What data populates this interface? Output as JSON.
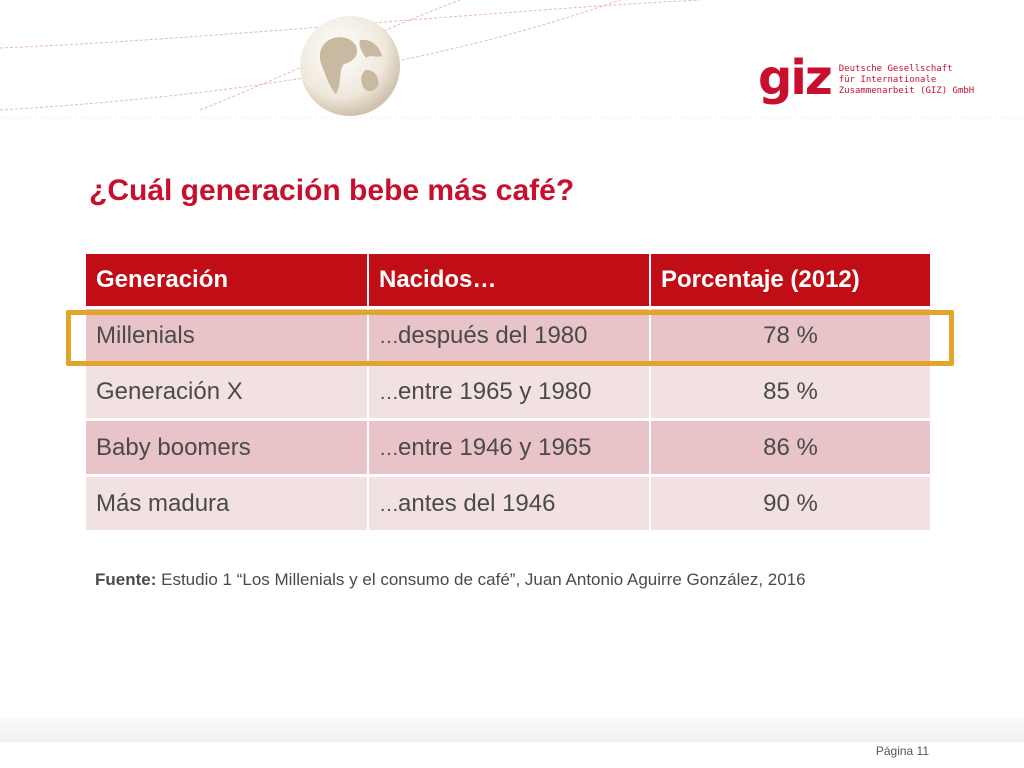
{
  "logo": {
    "mark": "giz",
    "lines": [
      "Deutsche Gesellschaft",
      "für Internationale",
      "Zusammenarbeit (GIZ) GmbH"
    ]
  },
  "slide": {
    "title": "¿Cuál generación bebe más café?"
  },
  "table": {
    "headers": [
      "Generación",
      "Nacidos…",
      "Porcentaje (2012)"
    ],
    "rows": [
      {
        "generation": "Millenials",
        "ellipsis": "…",
        "born": "después del 1980",
        "percent": "78 %"
      },
      {
        "generation": "Generación X",
        "ellipsis": "…",
        "born": "entre 1965 y 1980",
        "percent": "85 %"
      },
      {
        "generation": "Baby boomers",
        "ellipsis": "…",
        "born": "entre 1946 y 1965",
        "percent": "86 %"
      },
      {
        "generation": "Más madura",
        "ellipsis": "…",
        "born": "antes del 1946",
        "percent": "90 %"
      }
    ]
  },
  "source": {
    "label": "Fuente:",
    "text": " Estudio 1 “Los Millenials y el consumo de café”, Juan Antonio Aguirre González, 2016"
  },
  "footer": {
    "page": "Página 11"
  },
  "colors": {
    "accent": "#c8102e",
    "header_bg": "#c00d16",
    "highlight": "#e0a52a"
  }
}
